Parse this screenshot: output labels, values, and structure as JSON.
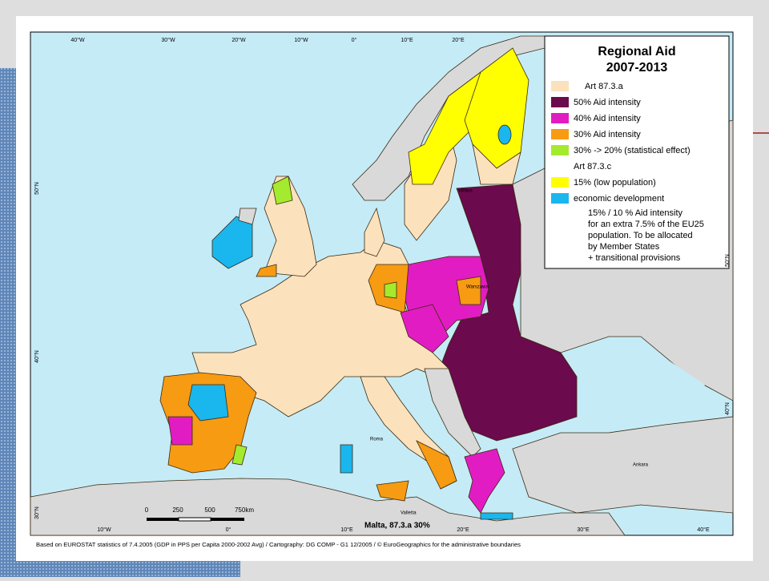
{
  "legend": {
    "title": "Regional Aid",
    "period": "2007-2013",
    "items": [
      {
        "label": "Art 87.3.a",
        "color": "#fbe2bd"
      },
      {
        "label": "50% Aid intensity",
        "color": "#6b0a4c"
      },
      {
        "label": "40% Aid intensity",
        "color": "#e21cc3"
      },
      {
        "label": "30% Aid intensity",
        "color": "#f79b12"
      },
      {
        "label": "30% -> 20% (statistical effect)",
        "color": "#a4ea2e"
      },
      {
        "label": "Art 87.3.c"
      },
      {
        "label": "15% (low population)",
        "color": "#ffff00"
      },
      {
        "label": "economic development",
        "color": "#1ab6ee"
      }
    ],
    "notes": [
      "15% / 10 % Aid intensity",
      "for an extra 7.5% of the EU25",
      "population. To be allocated",
      "by Member States",
      "+ transitional provisions"
    ]
  },
  "graticule": {
    "top": [
      "40°W",
      "30°W",
      "20°W",
      "10°W",
      "0°",
      "10°E",
      "20°E"
    ],
    "bottom": [
      "10°W",
      "0°",
      "10°E",
      "20°E",
      "30°E",
      "40°E"
    ],
    "left": [
      "50°N",
      "40°N",
      "30°N"
    ],
    "right": [
      "50°N",
      "40°N"
    ]
  },
  "places": [
    "Vilnius",
    "Warszawa",
    "Roma",
    "Valletta",
    "Ankara"
  ],
  "scale": [
    "0",
    "250",
    "500",
    "750km"
  ],
  "malta_note": "Malta, 87.3.a 30%",
  "footer": "Based on EUROSTAT statistics of 7.4.2005 (GDP in PPS per Capita 2000-2002 Avg) / Cartography: DG COMP - G1 12/2005 / © EuroGeographics for the administrative boundaries"
}
